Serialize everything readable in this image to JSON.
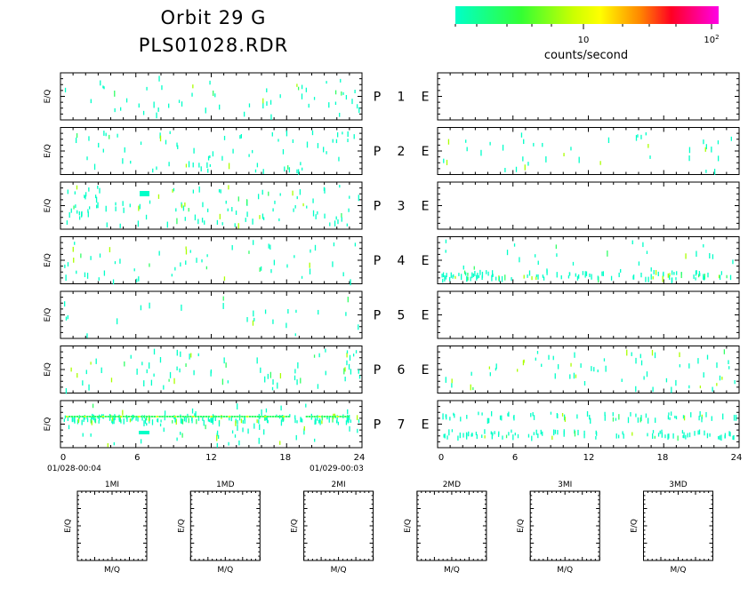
{
  "title_line1": "Orbit 29 G",
  "title_line2": "PLS01028.RDR",
  "colorbar": {
    "label": "counts/second",
    "tick_labels": [
      "10",
      "10",
      "2"
    ],
    "scale": "log",
    "range": [
      1,
      100
    ],
    "colors": [
      "#00ffc8",
      "#33ff33",
      "#ffff00",
      "#ff8800",
      "#ff0022",
      "#ff00e6"
    ]
  },
  "chart_data": {
    "type": "heatmap",
    "ylabel": "E/Q",
    "x_ticks": [
      "0",
      "6",
      "12",
      "18",
      "24"
    ],
    "xlim": [
      0,
      24
    ],
    "start_label": "01/028-00:04",
    "end_label": "01/029-00:03",
    "rows": [
      {
        "label_p": "P",
        "num": "1",
        "label_e": "E",
        "left_density": 0.35,
        "right_density": 0.0
      },
      {
        "label_p": "P",
        "num": "2",
        "label_e": "E",
        "left_density": 0.45,
        "right_density": 0.25
      },
      {
        "label_p": "P",
        "num": "3",
        "label_e": "E",
        "left_density": 0.7,
        "right_density": 0.0
      },
      {
        "label_p": "P",
        "num": "4",
        "label_e": "E",
        "left_density": 0.35,
        "right_density": 0.9
      },
      {
        "label_p": "P",
        "num": "5",
        "label_e": "E",
        "left_density": 0.15,
        "right_density": 0.0
      },
      {
        "label_p": "P",
        "num": "6",
        "label_e": "E",
        "left_density": 0.45,
        "right_density": 0.4
      },
      {
        "label_p": "P",
        "num": "7",
        "label_e": "E",
        "left_density": 0.9,
        "right_density": 1.0
      }
    ],
    "mass_panels": [
      {
        "title": "1MI",
        "xlabel": "M/Q",
        "ylabel": "E/Q"
      },
      {
        "title": "1MD",
        "xlabel": "M/Q",
        "ylabel": "E/Q"
      },
      {
        "title": "2MI",
        "xlabel": "M/Q",
        "ylabel": "E/Q"
      },
      {
        "title": "2MD",
        "xlabel": "M/Q",
        "ylabel": "E/Q"
      },
      {
        "title": "3MI",
        "xlabel": "M/Q",
        "ylabel": "E/Q"
      },
      {
        "title": "3MD",
        "xlabel": "M/Q",
        "ylabel": "E/Q"
      }
    ]
  }
}
